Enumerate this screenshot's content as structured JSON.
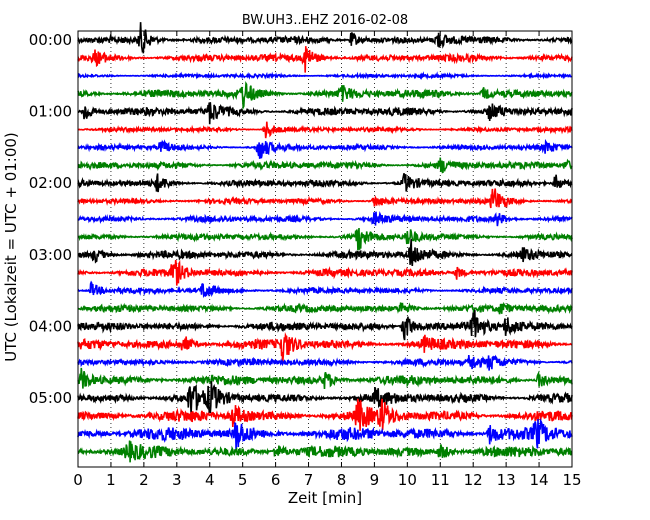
{
  "chart_data": {
    "type": "line",
    "title": "BW.UH3..EHZ 2016-02-08",
    "xlabel": "Zeit  [min]",
    "ylabel": "UTC (Lokalzeit = UTC + 01:00)",
    "xlim": [
      0,
      15
    ],
    "x_ticks": [
      "0",
      "1",
      "2",
      "3",
      "4",
      "5",
      "6",
      "7",
      "8",
      "9",
      "10",
      "11",
      "12",
      "13",
      "14",
      "15"
    ],
    "y_tick_labels": [
      "00:00",
      "01:00",
      "02:00",
      "03:00",
      "04:00",
      "05:00"
    ],
    "grid": true,
    "row_interval_min": 15,
    "colors": [
      "#000000",
      "#ff0000",
      "#0000ff",
      "#008000"
    ],
    "series": [
      {
        "row": 0,
        "color": "#000000",
        "amplitude": 0.25,
        "events": [
          [
            1.9,
            1.0
          ],
          [
            8.3,
            0.5
          ],
          [
            10.9,
            0.55
          ]
        ]
      },
      {
        "row": 1,
        "color": "#ff0000",
        "amplitude": 0.25,
        "events": [
          [
            6.9,
            0.9
          ],
          [
            0.5,
            0.4
          ]
        ]
      },
      {
        "row": 2,
        "color": "#0000ff",
        "amplitude": 0.12,
        "events": []
      },
      {
        "row": 3,
        "color": "#008000",
        "amplitude": 0.3,
        "events": [
          [
            5.0,
            0.8
          ],
          [
            8.0,
            0.4
          ],
          [
            12.3,
            0.4
          ]
        ]
      },
      {
        "row": 4,
        "color": "#000000",
        "amplitude": 0.3,
        "events": [
          [
            0.2,
            0.7
          ],
          [
            4.0,
            0.6
          ],
          [
            12.5,
            0.5
          ]
        ]
      },
      {
        "row": 5,
        "color": "#ff0000",
        "amplitude": 0.15,
        "events": [
          [
            5.7,
            0.6
          ]
        ]
      },
      {
        "row": 6,
        "color": "#0000ff",
        "amplitude": 0.18,
        "events": [
          [
            2.5,
            0.4
          ],
          [
            5.5,
            0.9
          ],
          [
            14.2,
            0.3
          ]
        ]
      },
      {
        "row": 7,
        "color": "#008000",
        "amplitude": 0.25,
        "events": [
          [
            11.0,
            0.4
          ],
          [
            14.8,
            0.35
          ]
        ]
      },
      {
        "row": 8,
        "color": "#000000",
        "amplitude": 0.25,
        "events": [
          [
            2.4,
            0.5
          ],
          [
            9.9,
            0.6
          ],
          [
            14.5,
            0.55
          ]
        ]
      },
      {
        "row": 9,
        "color": "#ff0000",
        "amplitude": 0.2,
        "events": [
          [
            12.6,
            0.9
          ],
          [
            9.0,
            0.4
          ]
        ]
      },
      {
        "row": 10,
        "color": "#0000ff",
        "amplitude": 0.22,
        "events": [
          [
            9.0,
            0.4
          ],
          [
            12.7,
            0.45
          ]
        ]
      },
      {
        "row": 11,
        "color": "#008000",
        "amplitude": 0.22,
        "events": [
          [
            8.5,
            0.8
          ],
          [
            10.0,
            0.6
          ]
        ]
      },
      {
        "row": 12,
        "color": "#000000",
        "amplitude": 0.28,
        "events": [
          [
            10.1,
            0.9
          ],
          [
            0.5,
            0.4
          ],
          [
            13.5,
            0.4
          ]
        ]
      },
      {
        "row": 13,
        "color": "#ff0000",
        "amplitude": 0.28,
        "events": [
          [
            2.9,
            0.9
          ],
          [
            11.5,
            0.4
          ]
        ]
      },
      {
        "row": 14,
        "color": "#0000ff",
        "amplitude": 0.2,
        "events": [
          [
            0.4,
            0.5
          ],
          [
            3.8,
            0.5
          ]
        ]
      },
      {
        "row": 15,
        "color": "#008000",
        "amplitude": 0.25,
        "events": [
          [
            9.8,
            0.4
          ],
          [
            12.8,
            0.3
          ]
        ]
      },
      {
        "row": 16,
        "color": "#000000",
        "amplitude": 0.3,
        "events": [
          [
            9.9,
            1.0
          ],
          [
            12.0,
            1.0
          ],
          [
            13.0,
            0.6
          ]
        ]
      },
      {
        "row": 17,
        "color": "#ff0000",
        "amplitude": 0.35,
        "events": [
          [
            3.2,
            0.5
          ],
          [
            6.2,
            1.0
          ],
          [
            10.5,
            0.4
          ]
        ]
      },
      {
        "row": 18,
        "color": "#0000ff",
        "amplitude": 0.25,
        "events": [
          [
            11.9,
            0.5
          ],
          [
            12.5,
            0.4
          ]
        ]
      },
      {
        "row": 19,
        "color": "#008000",
        "amplitude": 0.35,
        "events": [
          [
            0.1,
            0.6
          ],
          [
            7.5,
            0.5
          ],
          [
            14.0,
            0.5
          ]
        ]
      },
      {
        "row": 20,
        "color": "#000000",
        "amplitude": 0.35,
        "events": [
          [
            3.4,
            1.0
          ],
          [
            4.0,
            0.8
          ],
          [
            9.0,
            0.5
          ]
        ]
      },
      {
        "row": 21,
        "color": "#ff0000",
        "amplitude": 0.4,
        "events": [
          [
            8.5,
            0.9
          ],
          [
            9.2,
            0.9
          ],
          [
            4.7,
            0.7
          ]
        ]
      },
      {
        "row": 22,
        "color": "#0000ff",
        "amplitude": 0.45,
        "events": [
          [
            4.8,
            0.9
          ],
          [
            12.5,
            0.6
          ],
          [
            13.9,
            0.8
          ]
        ]
      },
      {
        "row": 23,
        "color": "#008000",
        "amplitude": 0.4,
        "events": [
          [
            1.5,
            0.5
          ],
          [
            6.0,
            0.5
          ],
          [
            11.0,
            0.5
          ]
        ]
      }
    ]
  }
}
